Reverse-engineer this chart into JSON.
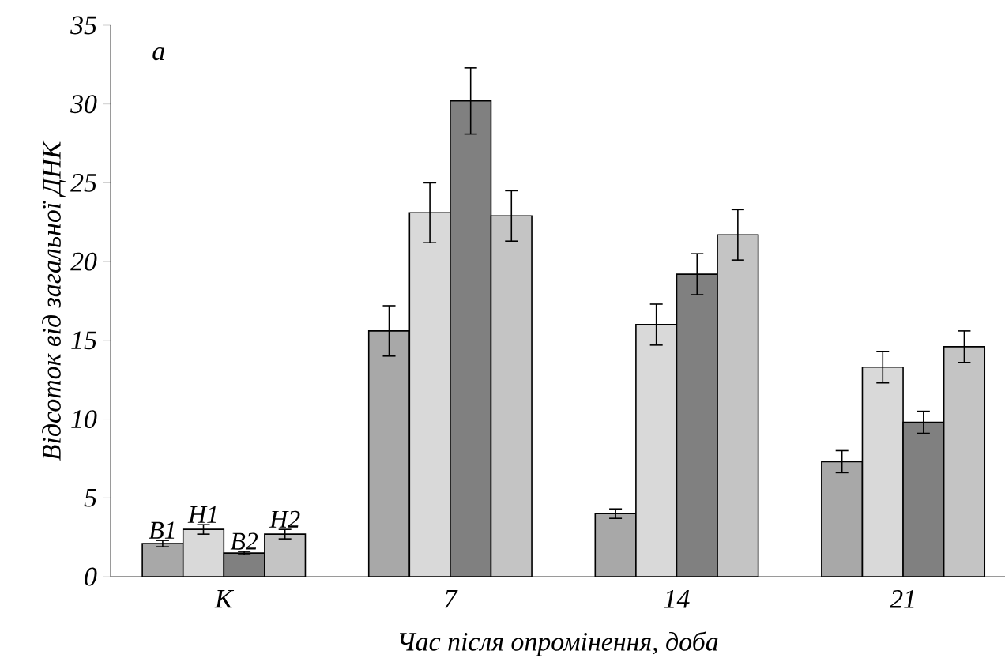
{
  "chart_data": {
    "type": "bar",
    "xlabel": "Час після опромінення, доба",
    "ylabel": "Відсоток від загальної ДНК",
    "annotations": [
      "а"
    ],
    "categories": [
      "К",
      "7",
      "14",
      "21"
    ],
    "ylim": [
      0,
      35
    ],
    "yticks": [
      0,
      5,
      10,
      15,
      20,
      25,
      30,
      35
    ],
    "legend": "bottom left",
    "series": [
      {
        "name": "В1",
        "color": "#a8a8a8",
        "values": [
          2.1,
          15.6,
          4.0,
          7.3
        ],
        "errors": [
          0.2,
          1.6,
          0.3,
          0.7
        ]
      },
      {
        "name": "Н1",
        "color": "#d9d9d9",
        "values": [
          3.0,
          23.1,
          16.0,
          13.3
        ],
        "errors": [
          0.3,
          1.9,
          1.3,
          1.0
        ]
      },
      {
        "name": "В2",
        "color": "#808080",
        "values": [
          1.5,
          30.2,
          19.2,
          9.8
        ],
        "errors": [
          0.1,
          2.1,
          1.3,
          0.7
        ]
      },
      {
        "name": "Н2",
        "color": "#c4c4c4",
        "values": [
          2.7,
          22.9,
          21.7,
          14.6
        ],
        "errors": [
          0.3,
          1.6,
          1.6,
          1.0
        ]
      }
    ]
  }
}
